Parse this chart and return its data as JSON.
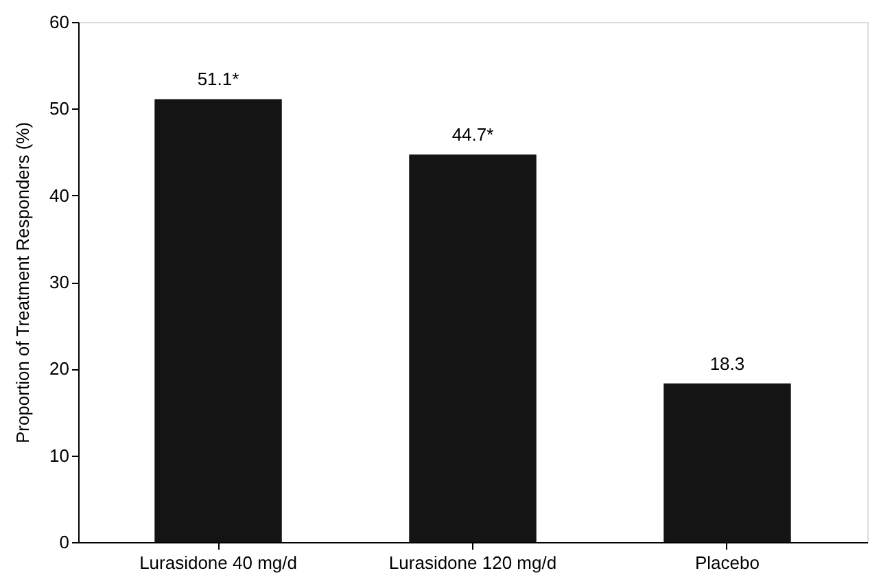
{
  "chart_data": {
    "type": "bar",
    "ylabel": "Proportion of Treatment Responders (%)",
    "categories": [
      "Lurasidone 40 mg/d",
      "Lurasidone 120 mg/d",
      "Placebo"
    ],
    "values": [
      51.1,
      44.7,
      18.3
    ],
    "color": "#141414",
    "value_labels": [
      "51.1*",
      "44.7*",
      "18.3"
    ],
    "ylim": [
      0,
      60
    ],
    "yticks": [
      0,
      10,
      20,
      30,
      40,
      50,
      60
    ],
    "grid": false
  }
}
